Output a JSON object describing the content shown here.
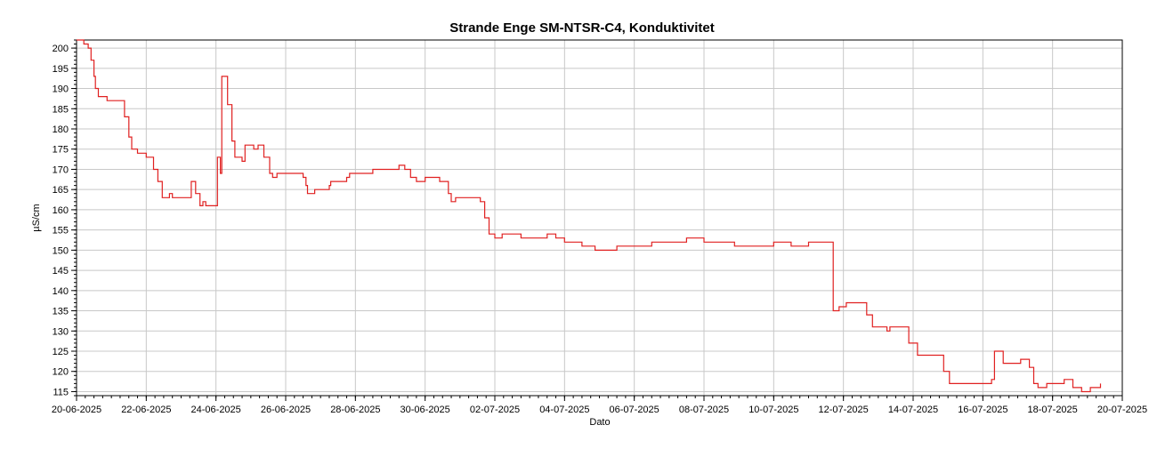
{
  "chart_data": {
    "type": "line",
    "title": "Strande Enge SM-NTSR-C4, Konduktivitet",
    "xlabel": "Dato",
    "ylabel": "µS/cm",
    "x_tick_labels": [
      "20-06-2025",
      "22-06-2025",
      "24-06-2025",
      "26-06-2025",
      "28-06-2025",
      "30-06-2025",
      "02-07-2025",
      "04-07-2025",
      "06-07-2025",
      "08-07-2025",
      "10-07-2025",
      "12-07-2025",
      "14-07-2025",
      "16-07-2025",
      "18-07-2025",
      "20-07-2025"
    ],
    "y_tick_labels": [
      "115",
      "120",
      "125",
      "130",
      "135",
      "140",
      "145",
      "150",
      "155",
      "160",
      "165",
      "170",
      "175",
      "180",
      "185",
      "190",
      "195",
      "200"
    ],
    "xlim": [
      "20-06-2025",
      "20-07-2025"
    ],
    "ylim": [
      114,
      202
    ],
    "grid": true,
    "line_color": "#e02020",
    "series": [
      {
        "points": [
          [
            "20-06-2025 00:00",
            202
          ],
          [
            "20-06-2025 05:00",
            201
          ],
          [
            "20-06-2025 08:00",
            200
          ],
          [
            "20-06-2025 10:00",
            197
          ],
          [
            "20-06-2025 12:00",
            193
          ],
          [
            "20-06-2025 13:00",
            190
          ],
          [
            "20-06-2025 15:00",
            188
          ],
          [
            "20-06-2025 21:00",
            187
          ],
          [
            "21-06-2025 06:00",
            187
          ],
          [
            "21-06-2025 09:00",
            183
          ],
          [
            "21-06-2025 12:00",
            178
          ],
          [
            "21-06-2025 14:00",
            175
          ],
          [
            "21-06-2025 18:00",
            174
          ],
          [
            "22-06-2025 00:00",
            173
          ],
          [
            "22-06-2025 05:00",
            170
          ],
          [
            "22-06-2025 08:00",
            167
          ],
          [
            "22-06-2025 11:00",
            163
          ],
          [
            "22-06-2025 16:00",
            164
          ],
          [
            "22-06-2025 18:00",
            163
          ],
          [
            "23-06-2025 06:00",
            163
          ],
          [
            "23-06-2025 07:00",
            167
          ],
          [
            "23-06-2025 10:00",
            164
          ],
          [
            "23-06-2025 13:00",
            161
          ],
          [
            "23-06-2025 15:00",
            162
          ],
          [
            "23-06-2025 17:00",
            161
          ],
          [
            "24-06-2025 00:00",
            161
          ],
          [
            "24-06-2025 01:00",
            173
          ],
          [
            "24-06-2025 03:00",
            169
          ],
          [
            "24-06-2025 04:00",
            193
          ],
          [
            "24-06-2025 08:00",
            186
          ],
          [
            "24-06-2025 11:00",
            177
          ],
          [
            "24-06-2025 13:00",
            173
          ],
          [
            "24-06-2025 18:00",
            172
          ],
          [
            "24-06-2025 20:00",
            176
          ],
          [
            "25-06-2025 02:00",
            175
          ],
          [
            "25-06-2025 05:00",
            176
          ],
          [
            "25-06-2025 09:00",
            173
          ],
          [
            "25-06-2025 13:00",
            169
          ],
          [
            "25-06-2025 15:00",
            168
          ],
          [
            "25-06-2025 18:00",
            169
          ],
          [
            "26-06-2025 12:00",
            168
          ],
          [
            "26-06-2025 14:00",
            166
          ],
          [
            "26-06-2025 15:00",
            164
          ],
          [
            "26-06-2025 20:00",
            165
          ],
          [
            "27-06-2025 06:00",
            166
          ],
          [
            "27-06-2025 07:00",
            167
          ],
          [
            "27-06-2025 18:00",
            168
          ],
          [
            "27-06-2025 20:00",
            169
          ],
          [
            "28-06-2025 12:00",
            170
          ],
          [
            "29-06-2025 06:00",
            171
          ],
          [
            "29-06-2025 10:00",
            170
          ],
          [
            "29-06-2025 14:00",
            168
          ],
          [
            "29-06-2025 18:00",
            167
          ],
          [
            "30-06-2025 00:00",
            168
          ],
          [
            "30-06-2025 10:00",
            167
          ],
          [
            "30-06-2025 16:00",
            164
          ],
          [
            "30-06-2025 18:00",
            162
          ],
          [
            "30-06-2025 21:00",
            163
          ],
          [
            "01-07-2025 14:00",
            162
          ],
          [
            "01-07-2025 17:00",
            158
          ],
          [
            "01-07-2025 20:00",
            154
          ],
          [
            "02-07-2025 00:00",
            153
          ],
          [
            "02-07-2025 05:00",
            154
          ],
          [
            "02-07-2025 18:00",
            153
          ],
          [
            "03-07-2025 12:00",
            154
          ],
          [
            "03-07-2025 18:00",
            153
          ],
          [
            "04-07-2025 00:00",
            152
          ],
          [
            "04-07-2025 12:00",
            151
          ],
          [
            "04-07-2025 21:00",
            150
          ],
          [
            "05-07-2025 12:00",
            151
          ],
          [
            "06-07-2025 06:00",
            151
          ],
          [
            "06-07-2025 12:00",
            152
          ],
          [
            "07-07-2025 12:00",
            153
          ],
          [
            "08-07-2025 00:00",
            152
          ],
          [
            "08-07-2025 15:00",
            152
          ],
          [
            "08-07-2025 21:00",
            151
          ],
          [
            "09-07-2025 12:00",
            151
          ],
          [
            "10-07-2025 00:00",
            152
          ],
          [
            "10-07-2025 12:00",
            151
          ],
          [
            "11-07-2025 00:00",
            152
          ],
          [
            "11-07-2025 15:00",
            152
          ],
          [
            "11-07-2025 17:00",
            135
          ],
          [
            "11-07-2025 21:00",
            136
          ],
          [
            "12-07-2025 02:00",
            137
          ],
          [
            "12-07-2025 12:00",
            137
          ],
          [
            "12-07-2025 16:00",
            134
          ],
          [
            "12-07-2025 20:00",
            131
          ],
          [
            "13-07-2025 06:00",
            130
          ],
          [
            "13-07-2025 08:00",
            131
          ],
          [
            "13-07-2025 18:00",
            131
          ],
          [
            "13-07-2025 21:00",
            127
          ],
          [
            "14-07-2025 03:00",
            124
          ],
          [
            "14-07-2025 18:00",
            124
          ],
          [
            "14-07-2025 21:00",
            120
          ],
          [
            "15-07-2025 01:00",
            117
          ],
          [
            "15-07-2025 18:00",
            117
          ],
          [
            "16-07-2025 06:00",
            118
          ],
          [
            "16-07-2025 08:00",
            125
          ],
          [
            "16-07-2025 14:00",
            122
          ],
          [
            "17-07-2025 02:00",
            123
          ],
          [
            "17-07-2025 08:00",
            121
          ],
          [
            "17-07-2025 11:00",
            117
          ],
          [
            "17-07-2025 14:00",
            116
          ],
          [
            "17-07-2025 20:00",
            117
          ],
          [
            "18-07-2025 08:00",
            118
          ],
          [
            "18-07-2025 14:00",
            116
          ],
          [
            "18-07-2025 20:00",
            115
          ],
          [
            "19-07-2025 02:00",
            116
          ],
          [
            "19-07-2025 09:00",
            117
          ]
        ]
      }
    ]
  }
}
